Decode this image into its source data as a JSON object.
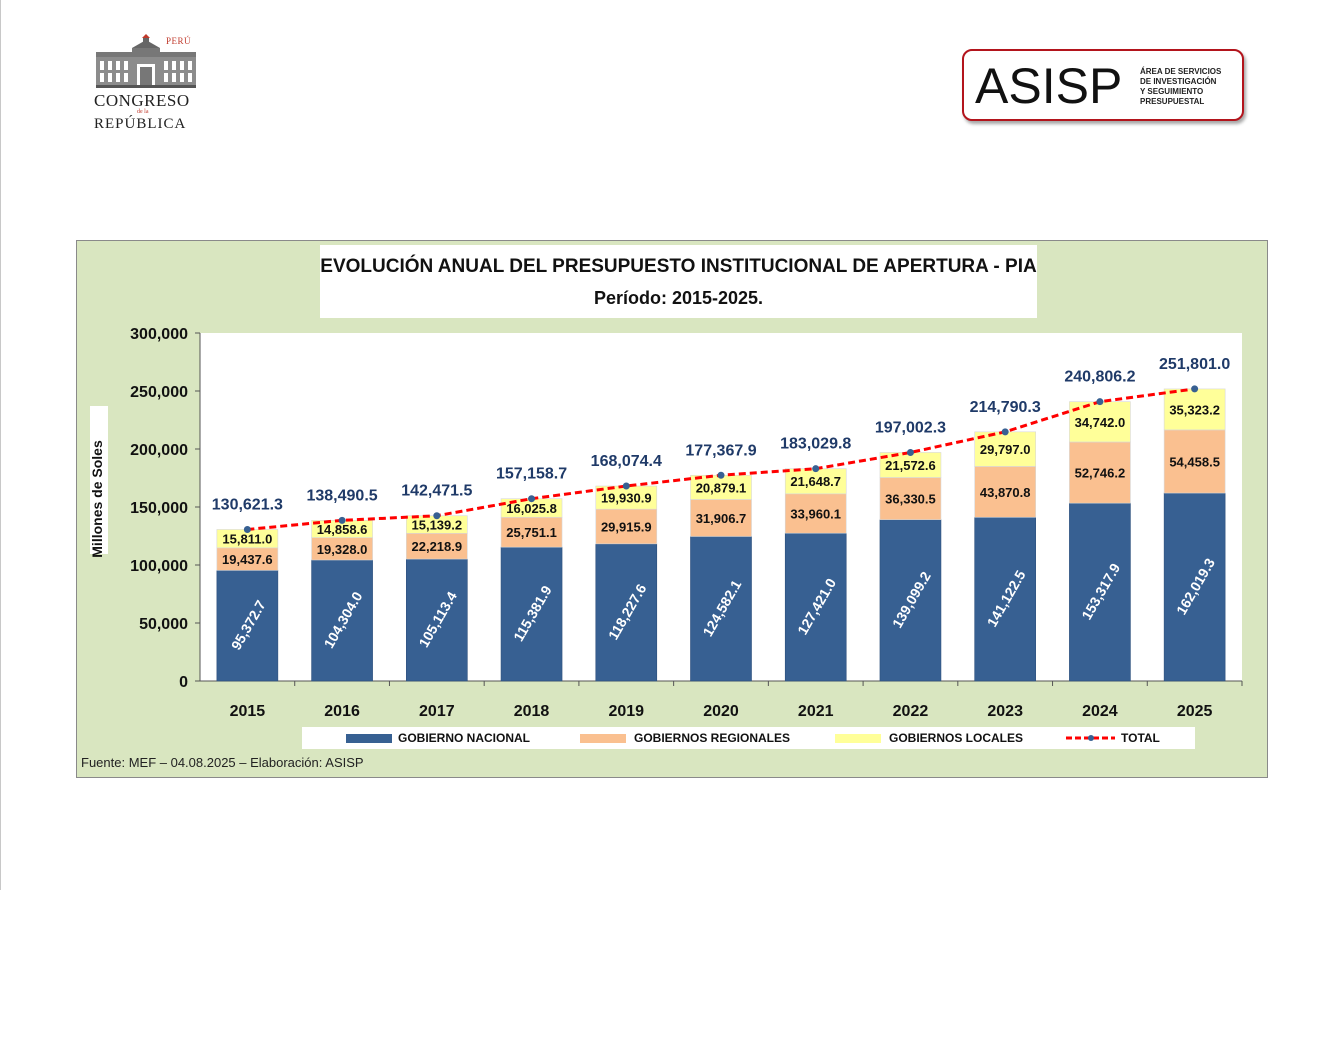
{
  "header": {
    "congreso_logo": {
      "peru": "PERÚ",
      "line1": "CONGRESO",
      "line2": "de la",
      "line3": "REPÚBLICA"
    },
    "asisp_logo": {
      "acronym": "ASISP",
      "subtitle_lines": [
        "ÁREA DE SERVICIOS",
        "DE INVESTIGACIÓN",
        "Y SEGUIMIENTO",
        "PRESUPUESTAL"
      ]
    }
  },
  "chart_data": {
    "type": "bar",
    "stacked": true,
    "title": "EVOLUCIÓN ANUAL DEL PRESUPUESTO INSTITUCIONAL DE APERTURA - PIA",
    "subtitle": "Período: 2015-2025.",
    "ylabel": "Millones de Soles",
    "xlabel": "",
    "ylim": [
      0,
      300000
    ],
    "yticks": [
      "0",
      "50,000",
      "100,000",
      "150,000",
      "200,000",
      "250,000",
      "300,000"
    ],
    "categories": [
      "2015",
      "2016",
      "2017",
      "2018",
      "2019",
      "2020",
      "2021",
      "2022",
      "2023",
      "2024",
      "2025"
    ],
    "series": [
      {
        "name": "GOBIERNO NACIONAL",
        "color": "#376092",
        "values": [
          95372.7,
          104304.0,
          105113.4,
          115381.9,
          118227.6,
          124582.1,
          127421.0,
          139099.2,
          141122.5,
          153317.9,
          162019.3
        ],
        "labels": [
          "95,372.7",
          "104,304.0",
          "105,113.4",
          "115,381.9",
          "118,227.6",
          "124,582.1",
          "127,421.0",
          "139,099.2",
          "141,122.5",
          "153,317.9",
          "162,019.3"
        ]
      },
      {
        "name": "GOBIERNOS REGIONALES",
        "color": "#fac090",
        "values": [
          19437.6,
          19328.0,
          22218.9,
          25751.1,
          29915.9,
          31906.7,
          33960.1,
          36330.5,
          43870.8,
          52746.2,
          54458.5
        ],
        "labels": [
          "19,437.6",
          "19,328.0",
          "22,218.9",
          "25,751.1",
          "29,915.9",
          "31,906.7",
          "33,960.1",
          "36,330.5",
          "43,870.8",
          "52,746.2",
          "54,458.5"
        ]
      },
      {
        "name": "GOBIERNOS LOCALES",
        "color": "#ffff99",
        "values": [
          15811.0,
          14858.6,
          15139.2,
          16025.8,
          19930.9,
          20879.1,
          21648.7,
          21572.6,
          29797.0,
          34742.0,
          35323.2
        ],
        "labels": [
          "15,811.0",
          "14,858.6",
          "15,139.2",
          "16,025.8",
          "19,930.9",
          "20,879.1",
          "21,648.7",
          "21,572.6",
          "29,797.0",
          "34,742.0",
          "35,323.2"
        ]
      },
      {
        "name": "TOTAL",
        "type": "line",
        "color": "#ff0000",
        "values": [
          130621.3,
          138490.5,
          142471.5,
          157158.7,
          168074.4,
          177367.9,
          183029.8,
          197002.3,
          214790.3,
          240806.2,
          251801.0
        ],
        "labels": [
          "130,621.3",
          "138,490.5",
          "142,471.5",
          "157,158.7",
          "168,074.4",
          "177,367.9",
          "183,029.8",
          "197,002.3",
          "214,790.3",
          "240,806.2",
          "251,801.0"
        ]
      }
    ],
    "legend_position": "bottom",
    "grid": false
  },
  "footer": {
    "source": "Fuente: MEF – 04.08.2025 – Elaboración: ASISP"
  }
}
